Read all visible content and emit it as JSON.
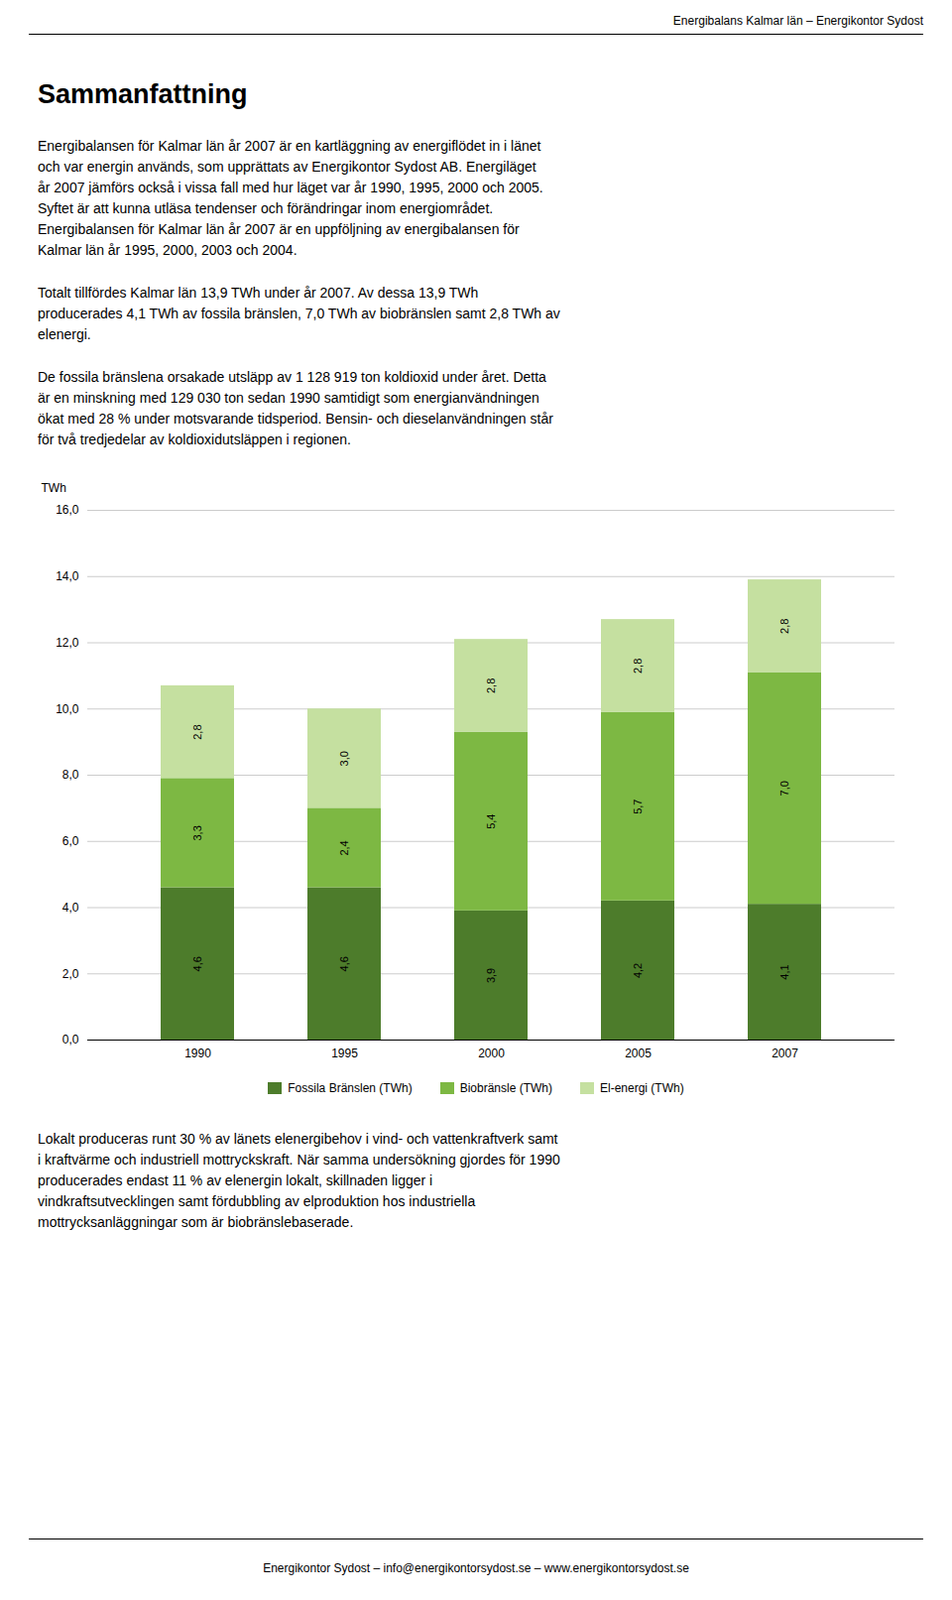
{
  "header": "Energibalans Kalmar län – Energikontor Sydost",
  "heading": "Sammanfattning",
  "paragraphs": [
    [
      "Energibalansen för Kalmar län år 2007 är en kartläggning av energiflödet in i länet",
      "och var energin används, som upprättats av Energikontor Sydost AB. Energiläget",
      "år 2007 jämförs också i vissa fall med hur läget var år 1990, 1995, 2000 och 2005.",
      "Syftet är att kunna utläsa tendenser och förändringar inom energiområdet.",
      "Energibalansen för Kalmar län år 2007 är en uppföljning av energibalansen för",
      "Kalmar län år 1995, 2000, 2003 och 2004."
    ],
    [
      "Totalt tillfördes Kalmar län 13,9 TWh under år 2007. Av dessa 13,9 TWh",
      "producerades 4,1 TWh av fossila bränslen, 7,0 TWh av biobränslen samt 2,8 TWh av",
      "elenergi."
    ],
    [
      "De fossila bränslena orsakade utsläpp av 1 128 919 ton koldioxid under året. Detta",
      "är en minskning med 129 030 ton sedan 1990 samtidigt som energianvändningen",
      "ökat med 28 % under motsvarande tidsperiod. Bensin- och dieselanvändningen står",
      "för två tredjedelar av koldioxidutsläppen i regionen."
    ]
  ],
  "paragraphs_after_chart": [
    [
      "Lokalt produceras runt 30 % av länets elenergibehov i vind- och vattenkraftverk samt",
      "i kraftvärme och industriell mottryckskraft. När samma undersökning gjordes för 1990",
      "producerades endast 11 % av elenergin lokalt, skillnaden ligger i",
      "vindkraftsutvecklingen samt fördubbling av elproduktion hos industriella",
      "mottrycksanläggningar som är biobränslebaserade."
    ]
  ],
  "footer": "Energikontor Sydost – info@energikontorsydost.se – www.energikontorsydost.se",
  "chart_data": {
    "type": "bar",
    "stacked": true,
    "y_label": "TWh",
    "categories": [
      "1990",
      "1995",
      "2000",
      "2005",
      "2007"
    ],
    "series": [
      {
        "name": "Fossila Bränslen (TWh)",
        "color": "#4d7c2b",
        "values": [
          4.6,
          4.6,
          3.9,
          4.2,
          4.1
        ],
        "value_labels": [
          "4,6",
          "4,6",
          "3,9",
          "4,2",
          "4,1"
        ]
      },
      {
        "name": "Biobränsle (TWh)",
        "color": "#7db843",
        "values": [
          3.3,
          2.4,
          5.4,
          5.7,
          7.0
        ],
        "value_labels": [
          "3,3",
          "2,4",
          "5,4",
          "5,7",
          "7,0"
        ]
      },
      {
        "name": "El-energi (TWh)",
        "color": "#c5e0a0",
        "values": [
          2.8,
          3.0,
          2.8,
          2.8,
          2.8
        ],
        "value_labels": [
          "2,8",
          "3,0",
          "2,8",
          "2,8",
          "2,8"
        ]
      }
    ],
    "ylim": [
      0,
      16.0
    ],
    "yticks": [
      {
        "value": 0.0,
        "label": "0,0"
      },
      {
        "value": 2.0,
        "label": "2,0"
      },
      {
        "value": 4.0,
        "label": "4,0"
      },
      {
        "value": 6.0,
        "label": "6,0"
      },
      {
        "value": 8.0,
        "label": "8,0"
      },
      {
        "value": 10.0,
        "label": "10,0"
      },
      {
        "value": 12.0,
        "label": "12,0"
      },
      {
        "value": 14.0,
        "label": "14,0"
      },
      {
        "value": 16.0,
        "label": "16,0"
      }
    ],
    "grid": true,
    "data_labels": true,
    "legend": "bottom"
  }
}
